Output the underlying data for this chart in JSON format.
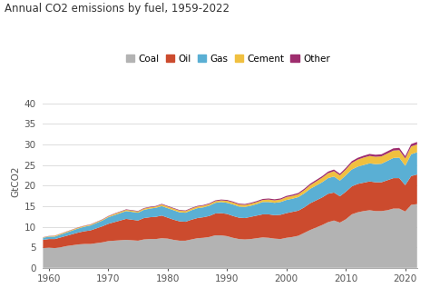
{
  "title": "Annual CO2 emissions by fuel, 1959-2022",
  "ylabel": "GtCO2",
  "years": [
    1959,
    1960,
    1961,
    1962,
    1963,
    1964,
    1965,
    1966,
    1967,
    1968,
    1969,
    1970,
    1971,
    1972,
    1973,
    1974,
    1975,
    1976,
    1977,
    1978,
    1979,
    1980,
    1981,
    1982,
    1983,
    1984,
    1985,
    1986,
    1987,
    1988,
    1989,
    1990,
    1991,
    1992,
    1993,
    1994,
    1995,
    1996,
    1997,
    1998,
    1999,
    2000,
    2001,
    2002,
    2003,
    2004,
    2005,
    2006,
    2007,
    2008,
    2009,
    2010,
    2011,
    2012,
    2013,
    2014,
    2015,
    2016,
    2017,
    2018,
    2019,
    2020,
    2021,
    2022
  ],
  "coal": [
    4.8,
    4.9,
    4.8,
    5.0,
    5.3,
    5.5,
    5.7,
    5.8,
    5.8,
    6.0,
    6.2,
    6.5,
    6.6,
    6.7,
    6.8,
    6.7,
    6.6,
    6.9,
    7.0,
    7.0,
    7.2,
    7.1,
    6.8,
    6.6,
    6.6,
    6.9,
    7.2,
    7.3,
    7.5,
    7.9,
    7.9,
    7.7,
    7.3,
    7.0,
    6.9,
    7.0,
    7.2,
    7.4,
    7.3,
    7.1,
    7.0,
    7.3,
    7.5,
    7.8,
    8.5,
    9.2,
    9.8,
    10.4,
    11.1,
    11.5,
    11.0,
    11.8,
    13.0,
    13.5,
    13.8,
    14.0,
    13.8,
    13.8,
    14.0,
    14.4,
    14.4,
    13.7,
    15.3,
    15.5
  ],
  "oil": [
    2.0,
    2.1,
    2.2,
    2.4,
    2.5,
    2.7,
    2.9,
    3.1,
    3.3,
    3.6,
    3.9,
    4.2,
    4.5,
    4.8,
    5.1,
    5.0,
    4.9,
    5.2,
    5.3,
    5.4,
    5.5,
    5.1,
    4.9,
    4.7,
    4.6,
    4.8,
    4.9,
    5.0,
    5.1,
    5.3,
    5.4,
    5.4,
    5.3,
    5.2,
    5.2,
    5.4,
    5.5,
    5.6,
    5.7,
    5.7,
    5.9,
    6.0,
    6.1,
    6.1,
    6.2,
    6.5,
    6.6,
    6.7,
    6.9,
    6.8,
    6.4,
    6.7,
    6.8,
    6.9,
    6.9,
    7.0,
    7.0,
    7.0,
    7.3,
    7.4,
    7.4,
    6.4,
    7.0,
    7.2
  ],
  "gas": [
    0.5,
    0.6,
    0.6,
    0.7,
    0.8,
    0.9,
    1.0,
    1.1,
    1.2,
    1.3,
    1.4,
    1.6,
    1.7,
    1.8,
    1.9,
    1.9,
    1.9,
    2.0,
    2.1,
    2.2,
    2.3,
    2.3,
    2.3,
    2.2,
    2.2,
    2.3,
    2.4,
    2.4,
    2.5,
    2.6,
    2.7,
    2.7,
    2.8,
    2.7,
    2.7,
    2.7,
    2.8,
    3.0,
    3.0,
    3.0,
    3.1,
    3.2,
    3.2,
    3.3,
    3.4,
    3.5,
    3.6,
    3.7,
    3.8,
    3.9,
    3.8,
    4.0,
    4.1,
    4.2,
    4.3,
    4.4,
    4.4,
    4.5,
    4.7,
    4.9,
    5.0,
    4.7,
    5.3,
    5.4
  ],
  "cement": [
    0.1,
    0.1,
    0.2,
    0.2,
    0.2,
    0.2,
    0.2,
    0.2,
    0.2,
    0.2,
    0.2,
    0.2,
    0.3,
    0.3,
    0.3,
    0.3,
    0.3,
    0.3,
    0.3,
    0.3,
    0.4,
    0.4,
    0.4,
    0.4,
    0.4,
    0.4,
    0.4,
    0.4,
    0.4,
    0.4,
    0.4,
    0.5,
    0.5,
    0.5,
    0.5,
    0.5,
    0.5,
    0.5,
    0.6,
    0.6,
    0.6,
    0.7,
    0.7,
    0.7,
    0.8,
    0.9,
    1.0,
    1.1,
    1.2,
    1.3,
    1.3,
    1.4,
    1.6,
    1.7,
    1.8,
    1.8,
    1.8,
    1.8,
    1.8,
    1.8,
    1.8,
    1.8,
    1.9,
    1.9
  ],
  "other": [
    0.05,
    0.05,
    0.05,
    0.05,
    0.06,
    0.06,
    0.07,
    0.07,
    0.08,
    0.08,
    0.09,
    0.1,
    0.1,
    0.11,
    0.12,
    0.12,
    0.12,
    0.13,
    0.14,
    0.14,
    0.15,
    0.15,
    0.15,
    0.15,
    0.15,
    0.16,
    0.16,
    0.17,
    0.18,
    0.19,
    0.2,
    0.2,
    0.21,
    0.21,
    0.21,
    0.22,
    0.23,
    0.24,
    0.25,
    0.26,
    0.27,
    0.28,
    0.29,
    0.3,
    0.32,
    0.34,
    0.35,
    0.36,
    0.38,
    0.39,
    0.38,
    0.4,
    0.42,
    0.44,
    0.46,
    0.48,
    0.49,
    0.5,
    0.52,
    0.54,
    0.56,
    0.54,
    0.58,
    0.6
  ],
  "colors": {
    "coal": "#b3b3b3",
    "oil": "#cc4b2e",
    "gas": "#5aafd4",
    "cement": "#f0c040",
    "other": "#9e2d6e"
  },
  "ylim": [
    0,
    42
  ],
  "yticks": [
    0,
    5,
    10,
    15,
    20,
    25,
    30,
    35,
    40
  ],
  "xticks": [
    1960,
    1970,
    1980,
    1990,
    2000,
    2010,
    2020
  ],
  "background_color": "#ffffff",
  "grid_color": "#dddddd",
  "title_fontsize": 8.5,
  "label_fontsize": 7.5,
  "legend_fontsize": 7.5
}
